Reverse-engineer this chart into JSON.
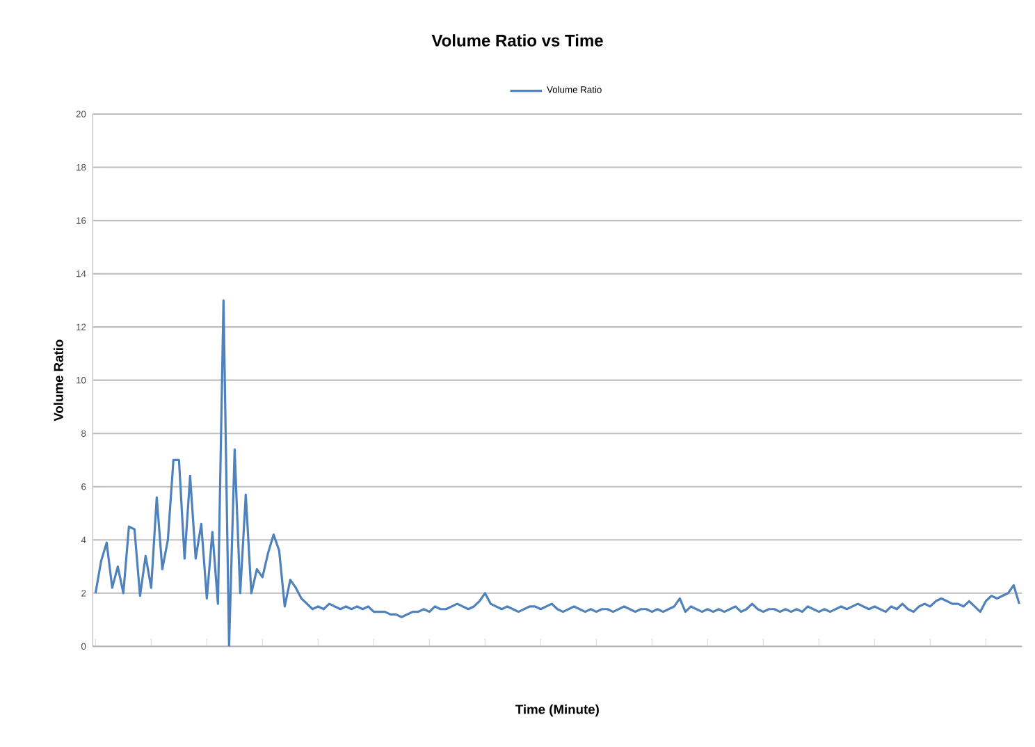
{
  "chart_data": {
    "type": "line",
    "title": "Volume Ratio vs Time",
    "xlabel": "Time (Minute)",
    "ylabel": "Volume Ratio",
    "categories": [
      null,
      null,
      null,
      null,
      null,
      null,
      null,
      null,
      null,
      null,
      null,
      null,
      null,
      null,
      null,
      null,
      null,
      null,
      null,
      null,
      null,
      null,
      null,
      null,
      null,
      null,
      null,
      null,
      null,
      null,
      null,
      null,
      null,
      null,
      null,
      null,
      null,
      null,
      null,
      null,
      null,
      null,
      null,
      null,
      null,
      null,
      null,
      null,
      null,
      null,
      null,
      null,
      null,
      null,
      null,
      null,
      null,
      null,
      null,
      null,
      null,
      null,
      null,
      null,
      null,
      null,
      null,
      null,
      null,
      null,
      null,
      null,
      null,
      null,
      null,
      null,
      null,
      null,
      null,
      null,
      null,
      null,
      null,
      null,
      null,
      null,
      null,
      null,
      null,
      null,
      null,
      null,
      null,
      null,
      null,
      null,
      null,
      null,
      null,
      null,
      null,
      null,
      null,
      null,
      null,
      null,
      null,
      null,
      null,
      null,
      null,
      null,
      null,
      null,
      null,
      null,
      null,
      null,
      null,
      null,
      null,
      null,
      null,
      null,
      null,
      null,
      null,
      null,
      null,
      null,
      null,
      null,
      null,
      null,
      null,
      null,
      null,
      null,
      null,
      null,
      null,
      null,
      null,
      null,
      null,
      null,
      null,
      null,
      null,
      null,
      null,
      null,
      null,
      null,
      null,
      null,
      null,
      null,
      null,
      null,
      null,
      null,
      null,
      null,
      null,
      null,
      null
    ],
    "series": [
      {
        "name": "Volume Ratio",
        "color": "#4f81bd",
        "values": [
          2.0,
          3.2,
          3.9,
          2.2,
          3.0,
          2.0,
          4.5,
          4.4,
          1.9,
          3.4,
          2.2,
          5.6,
          2.9,
          4.0,
          7.0,
          7.0,
          3.3,
          6.4,
          3.3,
          4.6,
          1.8,
          4.3,
          1.6,
          13.0,
          0.0,
          7.4,
          2.0,
          5.7,
          2.0,
          2.9,
          2.6,
          3.5,
          4.2,
          3.6,
          1.5,
          2.5,
          2.2,
          1.8,
          1.6,
          1.4,
          1.5,
          1.4,
          1.6,
          1.5,
          1.4,
          1.5,
          1.4,
          1.5,
          1.4,
          1.5,
          1.3,
          1.3,
          1.3,
          1.2,
          1.2,
          1.1,
          1.2,
          1.3,
          1.3,
          1.4,
          1.3,
          1.5,
          1.4,
          1.4,
          1.5,
          1.6,
          1.5,
          1.4,
          1.5,
          1.7,
          2.0,
          1.6,
          1.5,
          1.4,
          1.5,
          1.4,
          1.3,
          1.4,
          1.5,
          1.5,
          1.4,
          1.5,
          1.6,
          1.4,
          1.3,
          1.4,
          1.5,
          1.4,
          1.3,
          1.4,
          1.3,
          1.4,
          1.4,
          1.3,
          1.4,
          1.5,
          1.4,
          1.3,
          1.4,
          1.4,
          1.3,
          1.4,
          1.3,
          1.4,
          1.5,
          1.8,
          1.3,
          1.5,
          1.4,
          1.3,
          1.4,
          1.3,
          1.4,
          1.3,
          1.4,
          1.5,
          1.3,
          1.4,
          1.6,
          1.4,
          1.3,
          1.4,
          1.4,
          1.3,
          1.4,
          1.3,
          1.4,
          1.3,
          1.5,
          1.4,
          1.3,
          1.4,
          1.3,
          1.4,
          1.5,
          1.4,
          1.5,
          1.6,
          1.5,
          1.4,
          1.5,
          1.4,
          1.3,
          1.5,
          1.4,
          1.6,
          1.4,
          1.3,
          1.5,
          1.6,
          1.5,
          1.7,
          1.8,
          1.7,
          1.6,
          1.6,
          1.5,
          1.7,
          1.5,
          1.3,
          1.7,
          1.9,
          1.8,
          1.9,
          2.0,
          2.3,
          1.6
        ]
      }
    ],
    "ylim": [
      0,
      20
    ],
    "yticks": [
      0,
      2,
      4,
      6,
      8,
      10,
      12,
      14,
      16,
      18,
      20
    ],
    "grid": "y",
    "legend": "top",
    "marker": "none",
    "line_style": "solid"
  }
}
